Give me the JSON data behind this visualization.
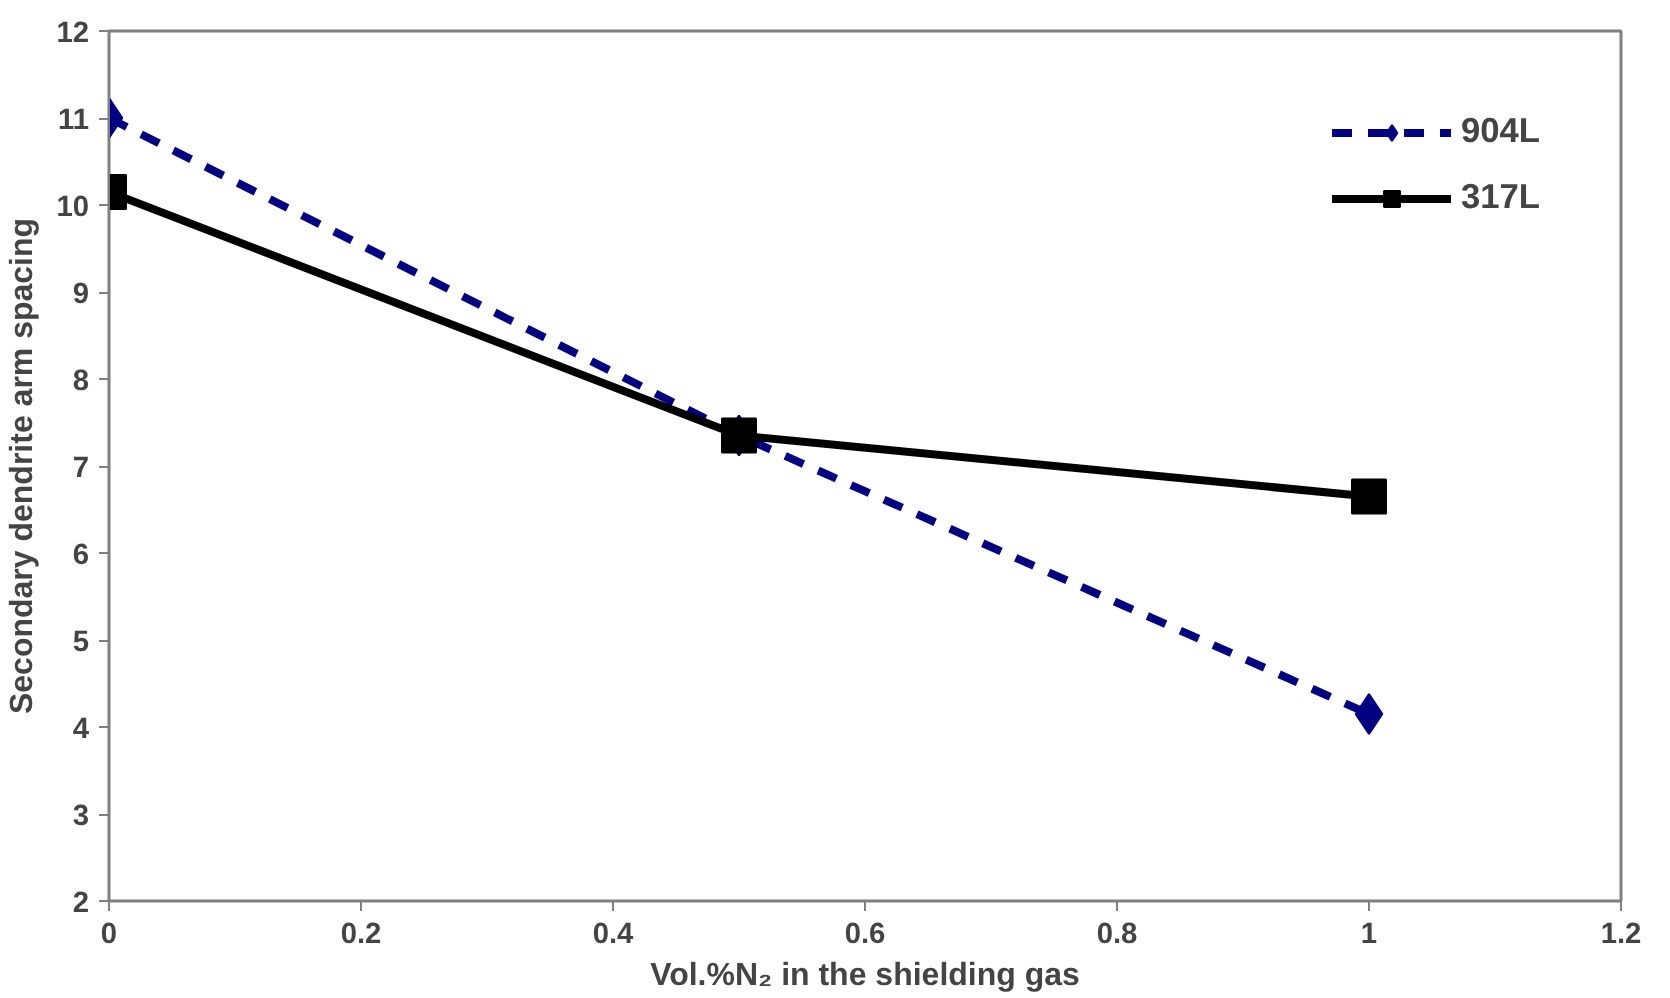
{
  "chart_data": {
    "type": "line",
    "xlabel": "Vol.%N₂ in the shielding gas",
    "ylabel": "Secondary dendrite arm spacing",
    "x": [
      0,
      0.5,
      1
    ],
    "xlim": [
      0,
      1.2
    ],
    "xticks": [
      0,
      0.2,
      0.4,
      0.6,
      0.8,
      1,
      1.2
    ],
    "ylim": [
      2,
      12
    ],
    "yticks": [
      2,
      3,
      4,
      5,
      6,
      7,
      8,
      9,
      10,
      11,
      12
    ],
    "grid": false,
    "legend": "top right",
    "series": [
      {
        "name": "904L",
        "color": "#000080",
        "values": [
          11.0,
          7.35,
          4.15
        ],
        "marker": "diamond",
        "line_style": "dashed"
      },
      {
        "name": "317L",
        "color": "#000000",
        "values": [
          10.15,
          7.35,
          6.65
        ],
        "marker": "square",
        "line_style": "solid"
      }
    ]
  }
}
